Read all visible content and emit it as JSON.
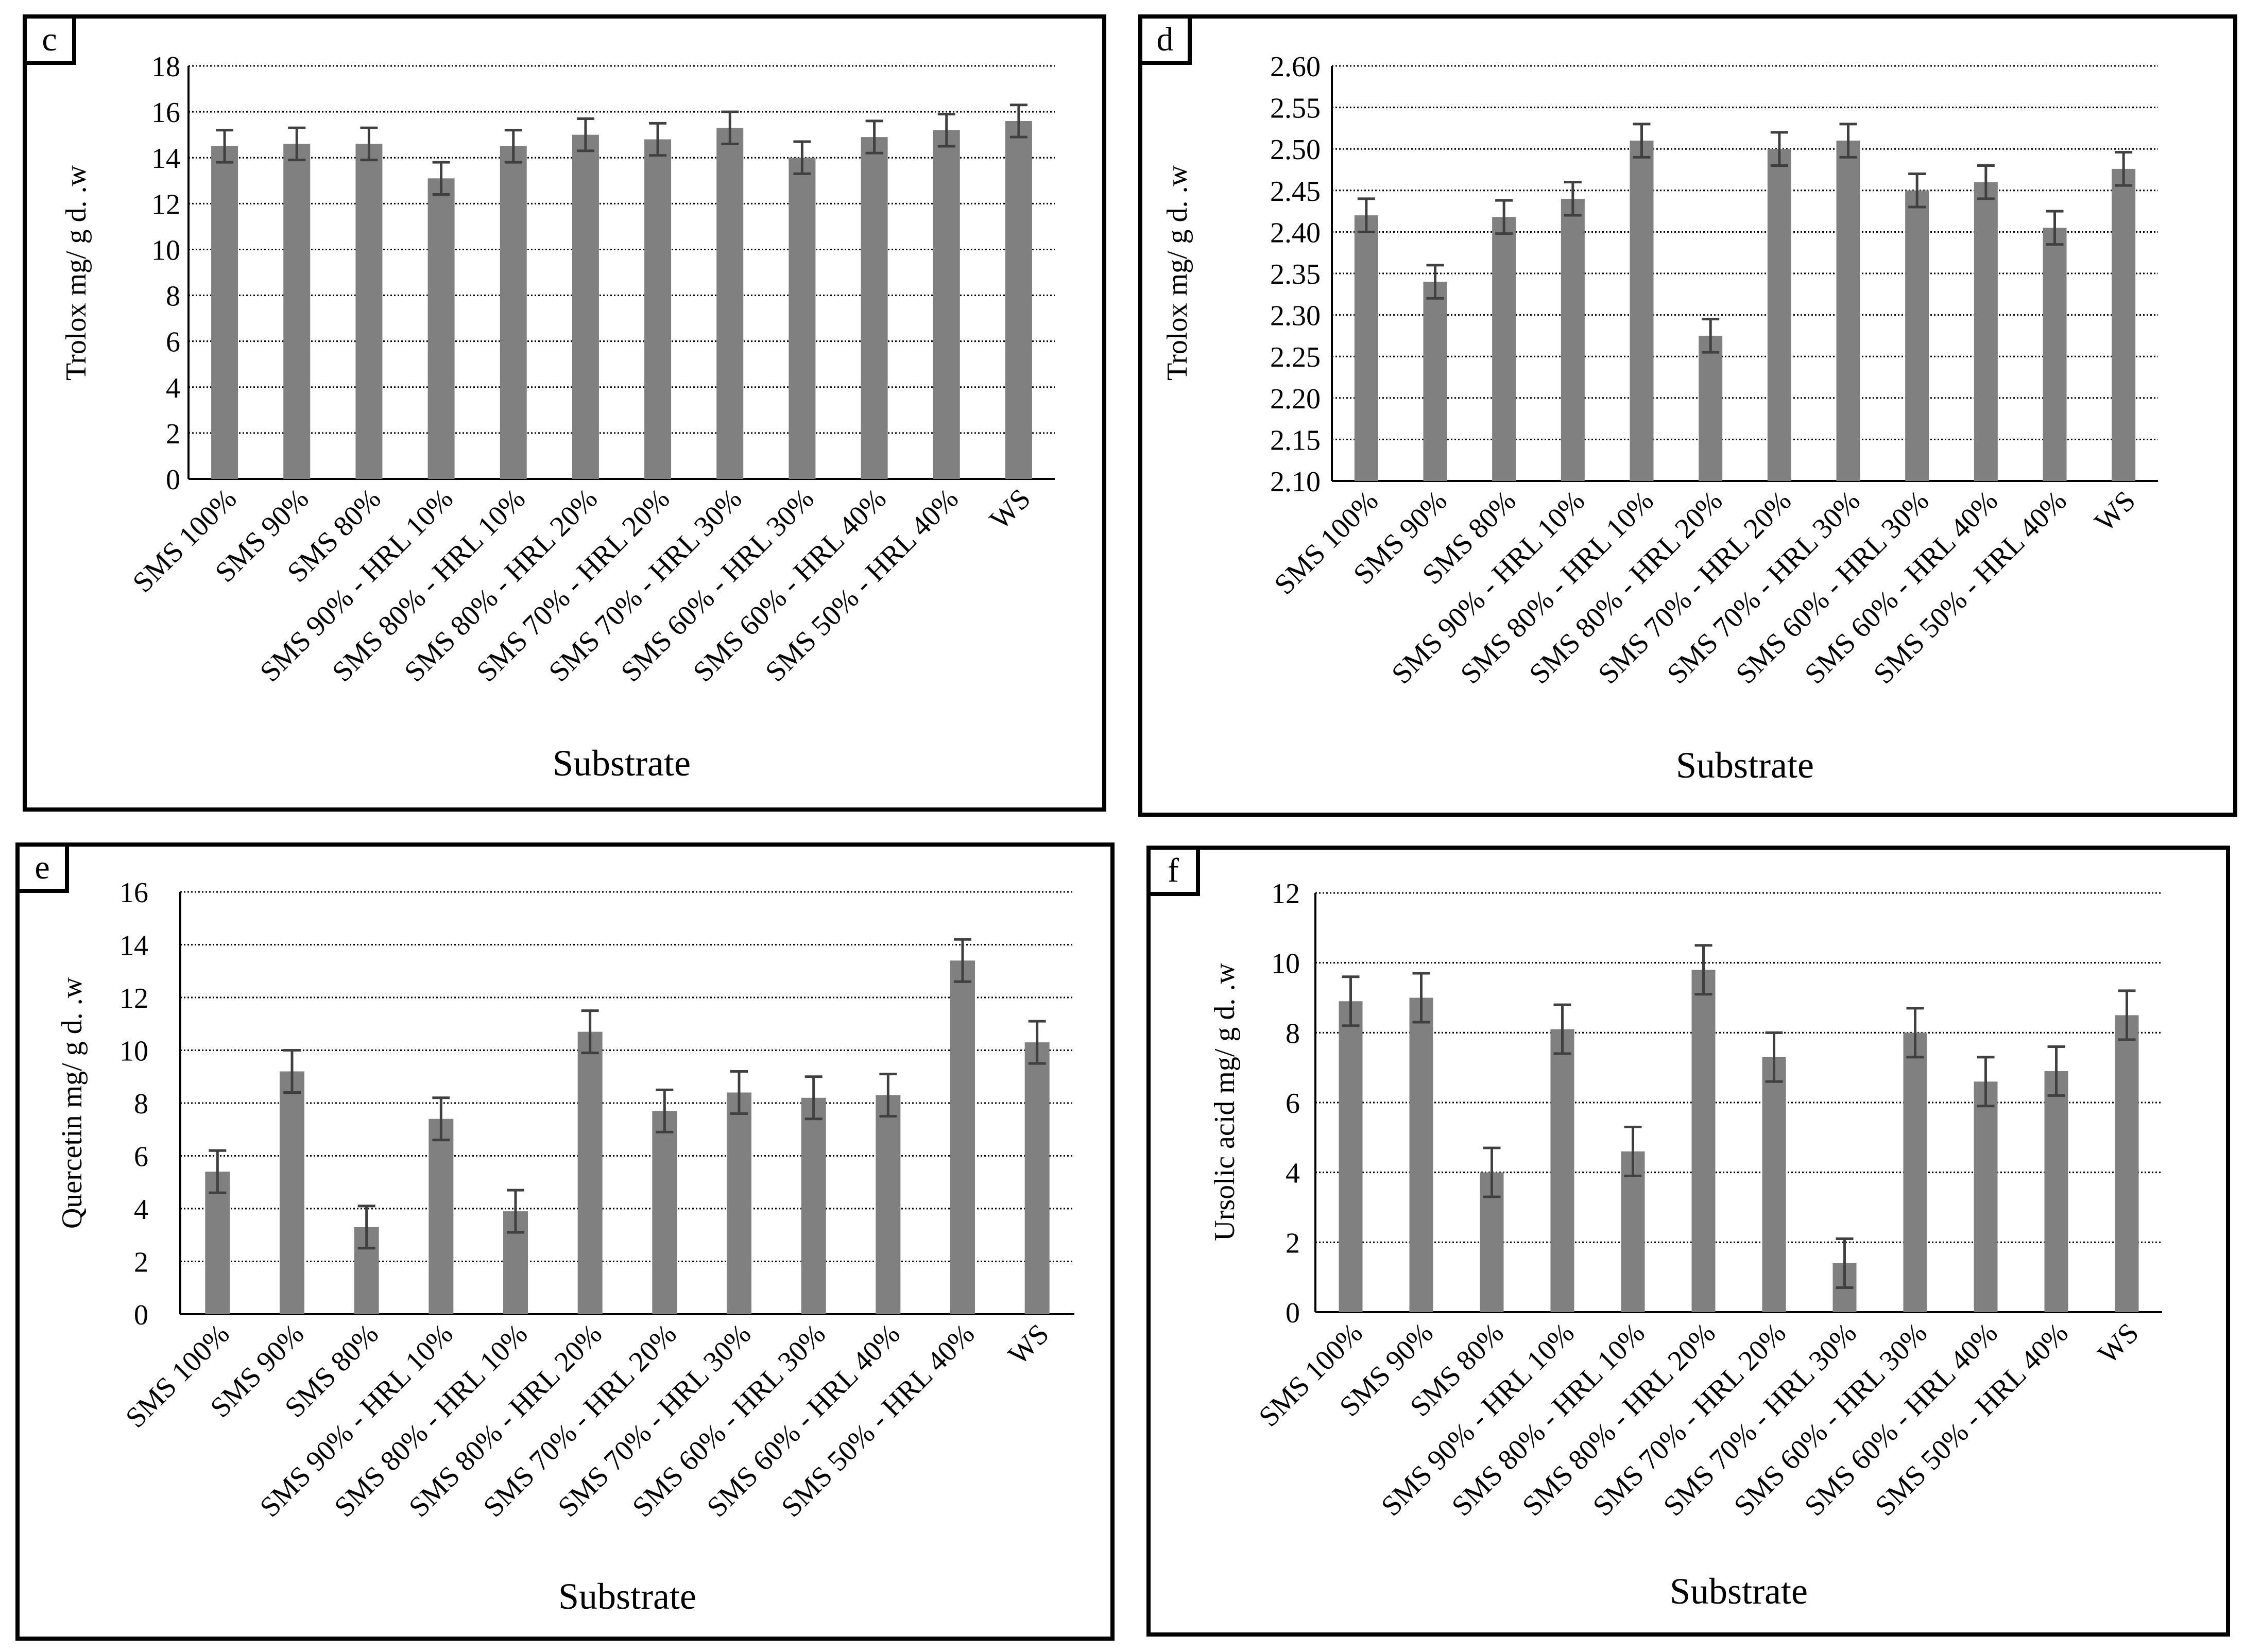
{
  "chart_data": [
    {
      "id": "c",
      "type": "bar",
      "panel_label": "c",
      "title": "",
      "xlabel": "Substrate",
      "ylabel": "Trolox mg/ g d. .w",
      "ylim": [
        0,
        18
      ],
      "ystep": 2,
      "tick_decimals": 0,
      "categories": [
        "SMS 100%",
        "SMS 90%",
        "SMS 80%",
        "SMS 90% - HRL 10%",
        "SMS 80% - HRL 10%",
        "SMS 80% - HRL 20%",
        "SMS 70% - HRL 20%",
        "SMS 70% - HRL 30%",
        "SMS 60% - HRL 30%",
        "SMS 60% - HRL 40%",
        "SMS 50% - HRL 40%",
        "WS"
      ],
      "values": [
        14.5,
        14.6,
        14.6,
        13.1,
        14.5,
        15.0,
        14.8,
        15.3,
        14.0,
        14.9,
        15.2,
        15.6
      ],
      "errors": [
        0.7,
        0.7,
        0.7,
        0.7,
        0.7,
        0.7,
        0.7,
        0.7,
        0.7,
        0.7,
        0.7,
        0.7
      ],
      "grid": true
    },
    {
      "id": "d",
      "type": "bar",
      "panel_label": "d",
      "title": "",
      "xlabel": "Substrate",
      "ylabel": "Trolox mg/ g d. .w",
      "ylim": [
        2.1,
        2.6
      ],
      "ystep": 0.05,
      "tick_decimals": 2,
      "categories": [
        "SMS 100%",
        "SMS 90%",
        "SMS 80%",
        "SMS 90% - HRL 10%",
        "SMS 80% - HRL 10%",
        "SMS 80% - HRL 20%",
        "SMS 70% - HRL 20%",
        "SMS 70% - HRL 30%",
        "SMS 60% - HRL 30%",
        "SMS 60% - HRL 40%",
        "SMS 50% - HRL 40%",
        "WS"
      ],
      "values": [
        2.42,
        2.34,
        2.418,
        2.44,
        2.51,
        2.275,
        2.5,
        2.51,
        2.45,
        2.46,
        2.405,
        2.476
      ],
      "errors": [
        0.02,
        0.02,
        0.02,
        0.02,
        0.02,
        0.02,
        0.02,
        0.02,
        0.02,
        0.02,
        0.02,
        0.02
      ],
      "grid": true
    },
    {
      "id": "e",
      "type": "bar",
      "panel_label": "e",
      "title": "",
      "xlabel": "Substrate",
      "ylabel": "Quercetin mg/ g d. .w",
      "ylim": [
        0,
        16
      ],
      "ystep": 2,
      "tick_decimals": 0,
      "categories": [
        "SMS 100%",
        "SMS 90%",
        "SMS 80%",
        "SMS 90% - HRL 10%",
        "SMS 80% - HRL 10%",
        "SMS 80% - HRL 20%",
        "SMS 70% - HRL 20%",
        "SMS 70% - HRL 30%",
        "SMS 60% - HRL 30%",
        "SMS 60% - HRL 40%",
        "SMS 50% - HRL 40%",
        "WS"
      ],
      "values": [
        5.4,
        9.2,
        3.3,
        7.4,
        3.9,
        10.7,
        7.7,
        8.4,
        8.2,
        8.3,
        13.4,
        10.3
      ],
      "errors": [
        0.8,
        0.8,
        0.8,
        0.8,
        0.8,
        0.8,
        0.8,
        0.8,
        0.8,
        0.8,
        0.8,
        0.8
      ],
      "grid": true
    },
    {
      "id": "f",
      "type": "bar",
      "panel_label": "f",
      "title": "",
      "xlabel": "Substrate",
      "ylabel": "Ursolic acid mg/ g d. .w",
      "ylim": [
        0,
        12
      ],
      "ystep": 2,
      "tick_decimals": 0,
      "categories": [
        "SMS 100%",
        "SMS 90%",
        "SMS 80%",
        "SMS 90% - HRL 10%",
        "SMS 80% - HRL 10%",
        "SMS 80% - HRL 20%",
        "SMS 70% - HRL 20%",
        "SMS 70% - HRL 30%",
        "SMS 60% - HRL 30%",
        "SMS 60% - HRL 40%",
        "SMS 50% - HRL 40%",
        "WS"
      ],
      "values": [
        8.9,
        9.0,
        4.0,
        8.1,
        4.6,
        9.8,
        7.3,
        1.4,
        8.0,
        6.6,
        6.9,
        8.5
      ],
      "errors": [
        0.7,
        0.7,
        0.7,
        0.7,
        0.7,
        0.7,
        0.7,
        0.7,
        0.7,
        0.7,
        0.7,
        0.7
      ],
      "grid": true
    }
  ],
  "colors": {
    "bar": "#808080",
    "error_bar": "#404040",
    "grid": "#000000",
    "axis": "#000000",
    "text": "#000000"
  }
}
